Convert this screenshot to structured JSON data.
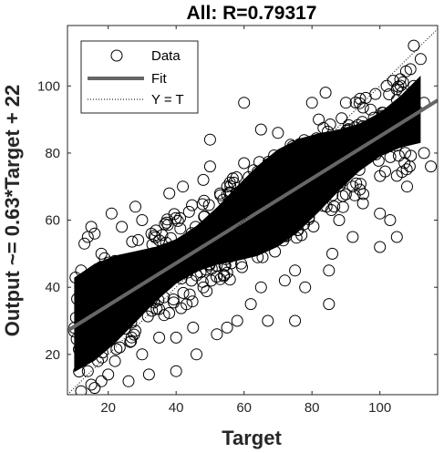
{
  "chart_data": {
    "type": "scatter",
    "title": "All: R=0.79317",
    "xlabel": "Target",
    "ylabel": "Output ~= 0.63*Target + 22",
    "xlim": [
      8,
      117
    ],
    "ylim": [
      8,
      118
    ],
    "xticks": [
      20,
      40,
      60,
      80,
      100
    ],
    "yticks": [
      20,
      40,
      60,
      80,
      100
    ],
    "grid": false,
    "legend_placement": "top-left",
    "legend": [
      {
        "key": "data",
        "label": "Data"
      },
      {
        "key": "fit",
        "label": "Fit"
      },
      {
        "key": "identity",
        "label": "Y = T"
      }
    ],
    "fit": {
      "slope": 0.63,
      "intercept": 22,
      "color": "#666666"
    },
    "identity": {
      "slope": 1,
      "intercept": 0,
      "color": "#000000"
    },
    "series": [
      {
        "name": "Data",
        "marker": "open-circle",
        "color": "#000000",
        "points": [
          [
            12,
            9
          ],
          [
            14,
            15
          ],
          [
            15,
            11
          ],
          [
            16,
            10
          ],
          [
            18,
            12
          ],
          [
            13,
            20
          ],
          [
            15,
            22
          ],
          [
            17,
            18
          ],
          [
            18,
            25
          ],
          [
            20,
            14
          ],
          [
            20,
            30
          ],
          [
            22,
            18
          ],
          [
            22,
            40
          ],
          [
            12,
            45
          ],
          [
            13,
            53
          ],
          [
            14,
            55
          ],
          [
            15,
            58
          ],
          [
            16,
            56
          ],
          [
            18,
            50
          ],
          [
            21,
            62
          ],
          [
            24,
            58
          ],
          [
            25,
            34
          ],
          [
            26,
            12
          ],
          [
            28,
            64
          ],
          [
            30,
            60
          ],
          [
            32,
            14
          ],
          [
            28,
            27
          ],
          [
            30,
            20
          ],
          [
            35,
            25
          ],
          [
            35,
            54
          ],
          [
            38,
            68
          ],
          [
            40,
            25
          ],
          [
            42,
            70
          ],
          [
            45,
            28
          ],
          [
            46,
            20
          ],
          [
            48,
            72
          ],
          [
            50,
            76
          ],
          [
            52,
            26
          ],
          [
            55,
            70
          ],
          [
            58,
            30
          ],
          [
            60,
            77
          ],
          [
            62,
            35
          ],
          [
            65,
            40
          ],
          [
            67,
            30
          ],
          [
            70,
            86
          ],
          [
            72,
            42
          ],
          [
            75,
            45
          ],
          [
            78,
            40
          ],
          [
            80,
            95
          ],
          [
            82,
            90
          ],
          [
            84,
            98
          ],
          [
            85,
            45
          ],
          [
            86,
            50
          ],
          [
            88,
            60
          ],
          [
            88,
            82
          ],
          [
            90,
            85
          ],
          [
            92,
            55
          ],
          [
            92,
            70
          ],
          [
            95,
            78
          ],
          [
            95,
            65
          ],
          [
            98,
            80
          ],
          [
            100,
            62
          ],
          [
            101,
            92
          ],
          [
            102,
            100
          ],
          [
            103,
            60
          ],
          [
            104,
            92
          ],
          [
            105,
            55
          ],
          [
            105,
            99
          ],
          [
            106,
            102
          ],
          [
            107,
            90
          ],
          [
            108,
            95
          ],
          [
            108,
            70
          ],
          [
            109,
            105
          ],
          [
            110,
            100
          ],
          [
            110,
            112
          ],
          [
            112,
            108
          ],
          [
            113,
            95
          ],
          [
            113,
            80
          ],
          [
            115,
            76
          ],
          [
            110,
            85
          ],
          [
            100,
            52
          ],
          [
            60,
            95
          ],
          [
            55,
            28
          ],
          [
            75,
            30
          ],
          [
            85,
            35
          ],
          [
            50,
            84
          ],
          [
            40,
            15
          ],
          [
            65,
            87
          ],
          [
            90,
            95
          ],
          [
            95,
            88
          ]
        ]
      }
    ]
  }
}
